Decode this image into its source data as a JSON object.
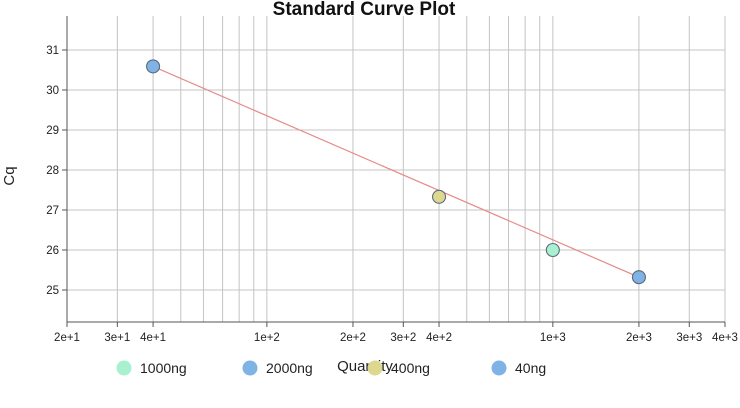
{
  "chart_data": {
    "type": "scatter",
    "title": "Standard Curve Plot",
    "xlabel": "Quantity",
    "ylabel": "Cq",
    "x_scale": "log",
    "xlim": [
      20,
      4000
    ],
    "ylim": [
      24.2,
      31.5
    ],
    "x_ticks": [
      {
        "value": 20,
        "label": "2e+1"
      },
      {
        "value": 30,
        "label": "3e+1"
      },
      {
        "value": 40,
        "label": "4e+1"
      },
      {
        "value": 100,
        "label": "1e+2"
      },
      {
        "value": 200,
        "label": "2e+2"
      },
      {
        "value": 300,
        "label": "3e+2"
      },
      {
        "value": 400,
        "label": "4e+2"
      },
      {
        "value": 1000,
        "label": "1e+3"
      },
      {
        "value": 2000,
        "label": "2e+3"
      },
      {
        "value": 3000,
        "label": "3e+3"
      },
      {
        "value": 4000,
        "label": "4e+3"
      }
    ],
    "x_minor_gridlines": [
      50,
      60,
      70,
      80,
      90,
      500,
      600,
      700,
      800,
      900
    ],
    "y_ticks": [
      25,
      26,
      27,
      28,
      29,
      30,
      31
    ],
    "grid": true,
    "legend_position": "bottom",
    "series": [
      {
        "name": "1000ng",
        "color": "#a8f0d0",
        "points": [
          {
            "x": 1000,
            "y": 26.0
          }
        ]
      },
      {
        "name": "2000ng",
        "color": "#7fb2e5",
        "points": [
          {
            "x": 2000,
            "y": 25.32
          }
        ]
      },
      {
        "name": "400ng",
        "color": "#dcd890",
        "points": [
          {
            "x": 400,
            "y": 27.33
          }
        ]
      },
      {
        "name": "40ng",
        "color": "#7fb2e5",
        "points": [
          {
            "x": 40,
            "y": 30.59
          }
        ]
      }
    ],
    "fit_line": {
      "color": "#e88a8a",
      "x": [
        40,
        2000
      ],
      "y": [
        30.59,
        25.32
      ]
    }
  }
}
